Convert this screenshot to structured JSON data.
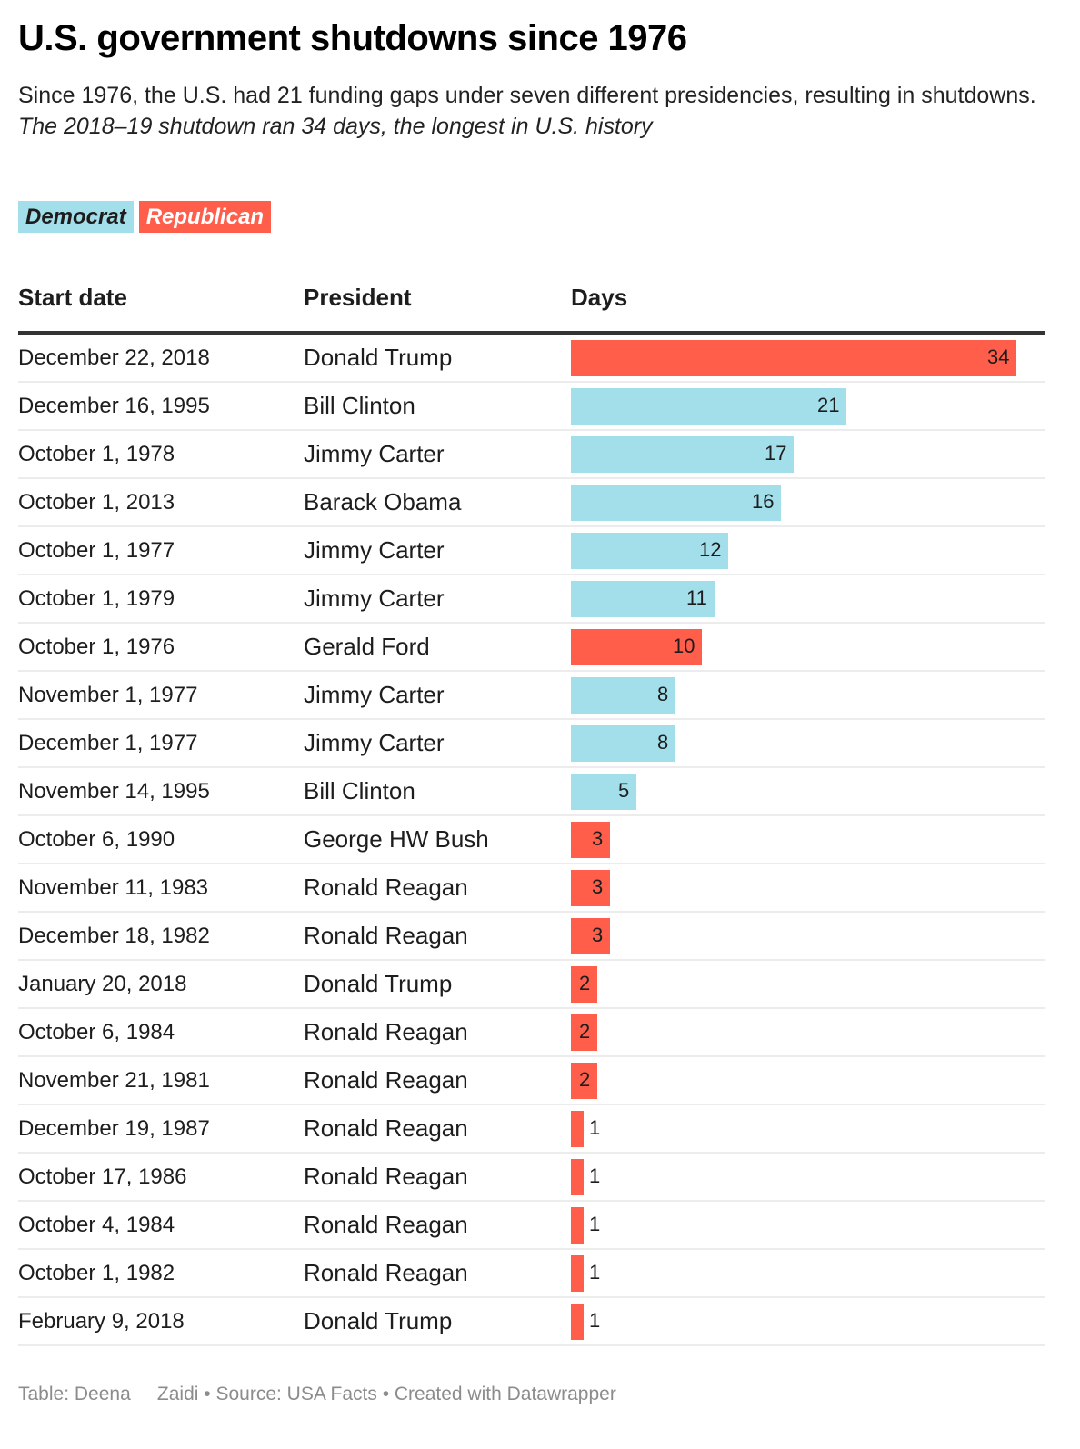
{
  "header": {
    "title": "U.S. government shutdowns since 1976",
    "subtitle": "Since 1976, the U.S. had 21 funding gaps under seven different presidencies, resulting in shutdowns.",
    "subtitle_italic": "The 2018–19 shutdown ran 34 days, the longest in U.S. history"
  },
  "legend": {
    "democrat": "Democrat",
    "republican": "Republican"
  },
  "colors": {
    "democrat": "#a3dfea",
    "republican": "#ff5e4b"
  },
  "table": {
    "columns": [
      "Start date",
      "President",
      "Days"
    ]
  },
  "chart_data": {
    "type": "table",
    "title": "U.S. government shutdowns since 1976",
    "columns": [
      "Start date",
      "President",
      "Days"
    ],
    "max_days": 34,
    "rows": [
      {
        "date": "December 22, 2018",
        "president": "Donald Trump",
        "days": 34,
        "party": "republican"
      },
      {
        "date": "December 16, 1995",
        "president": "Bill Clinton",
        "days": 21,
        "party": "democrat"
      },
      {
        "date": "October 1, 1978",
        "president": "Jimmy Carter",
        "days": 17,
        "party": "democrat"
      },
      {
        "date": "October 1, 2013",
        "president": "Barack Obama",
        "days": 16,
        "party": "democrat"
      },
      {
        "date": "October 1, 1977",
        "president": "Jimmy Carter",
        "days": 12,
        "party": "democrat"
      },
      {
        "date": "October 1, 1979",
        "president": "Jimmy Carter",
        "days": 11,
        "party": "democrat"
      },
      {
        "date": "October 1, 1976",
        "president": "Gerald Ford",
        "days": 10,
        "party": "republican"
      },
      {
        "date": "November 1, 1977",
        "president": "Jimmy Carter",
        "days": 8,
        "party": "democrat"
      },
      {
        "date": "December 1, 1977",
        "president": "Jimmy Carter",
        "days": 8,
        "party": "democrat"
      },
      {
        "date": "November 14, 1995",
        "president": "Bill Clinton",
        "days": 5,
        "party": "democrat"
      },
      {
        "date": "October 6, 1990",
        "president": "George HW Bush",
        "days": 3,
        "party": "republican"
      },
      {
        "date": "November 11, 1983",
        "president": "Ronald Reagan",
        "days": 3,
        "party": "republican"
      },
      {
        "date": "December 18, 1982",
        "president": "Ronald Reagan",
        "days": 3,
        "party": "republican"
      },
      {
        "date": "January 20, 2018",
        "president": "Donald Trump",
        "days": 2,
        "party": "republican"
      },
      {
        "date": "October 6, 1984",
        "president": "Ronald Reagan",
        "days": 2,
        "party": "republican"
      },
      {
        "date": "November 21, 1981",
        "president": "Ronald Reagan",
        "days": 2,
        "party": "republican"
      },
      {
        "date": "December 19, 1987",
        "president": "Ronald Reagan",
        "days": 1,
        "party": "republican"
      },
      {
        "date": "October 17, 1986",
        "president": "Ronald Reagan",
        "days": 1,
        "party": "republican"
      },
      {
        "date": "October 4, 1984",
        "president": "Ronald Reagan",
        "days": 1,
        "party": "republican"
      },
      {
        "date": "October 1, 1982",
        "president": "Ronald Reagan",
        "days": 1,
        "party": "republican"
      },
      {
        "date": "February 9, 2018",
        "president": "Donald Trump",
        "days": 1,
        "party": "republican"
      }
    ]
  },
  "footer": "Table: Deena     Zaidi • Source: USA Facts • Created with Datawrapper"
}
